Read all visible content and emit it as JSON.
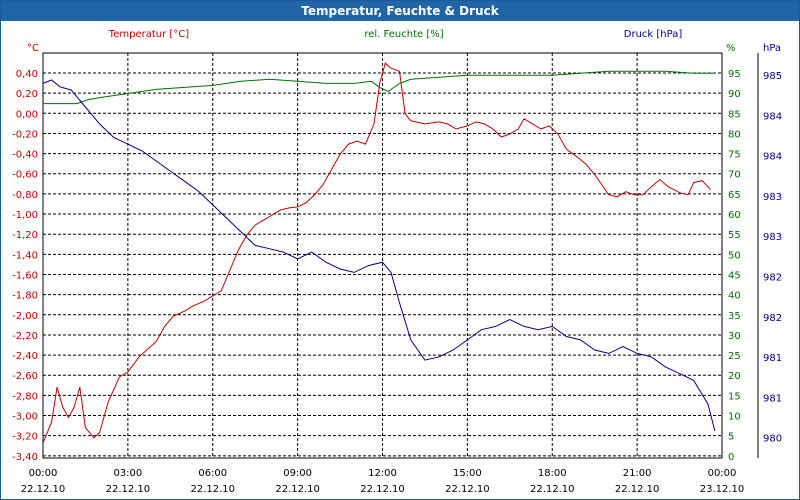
{
  "window": {
    "title": "Temperatur, Feuchte & Druck"
  },
  "chart_data": {
    "type": "line",
    "title": "Temperatur, Feuchte & Druck",
    "colors": {
      "temperature": "#c00000",
      "humidity": "#007000",
      "pressure": "#00008b",
      "grid": "#000000"
    },
    "axes": {
      "temp": {
        "label": "Temperatur [°C]",
        "unit": "°C",
        "range": [
          -3.4,
          0.6
        ],
        "ticks": [
          "0,40",
          "0,20",
          "0,00",
          "-0,20",
          "-0,40",
          "-0,60",
          "-0,80",
          "-1,00",
          "-1,20",
          "-1,40",
          "-1,60",
          "-1,80",
          "-2,00",
          "-2,20",
          "-2,40",
          "-2,60",
          "-2,80",
          "-3,00",
          "-3,20",
          "-3,40"
        ]
      },
      "humidity": {
        "label": "rel. Feuchte [%]",
        "unit": "%",
        "range": [
          0,
          100
        ],
        "ticks": [
          "95",
          "90",
          "85",
          "80",
          "75",
          "70",
          "65",
          "60",
          "55",
          "50",
          "45",
          "40",
          "35",
          "30",
          "25",
          "20",
          "15",
          "10",
          "5",
          "0"
        ]
      },
      "pressure": {
        "label": "Druck [hPa]",
        "unit": "hPa",
        "range": [
          979.8,
          985.8
        ],
        "ticks": [
          "985",
          "984",
          "984",
          "983",
          "983",
          "982",
          "982",
          "981",
          "981",
          "980"
        ]
      }
    },
    "x": {
      "ticks": [
        {
          "time": "00:00",
          "date": "22.12.10"
        },
        {
          "time": "03:00",
          "date": "22.12.10"
        },
        {
          "time": "06:00",
          "date": "22.12.10"
        },
        {
          "time": "09:00",
          "date": "22.12.10"
        },
        {
          "time": "12:00",
          "date": "22.12.10"
        },
        {
          "time": "15:00",
          "date": "22.12.10"
        },
        {
          "time": "18:00",
          "date": "22.12.10"
        },
        {
          "time": "21:00",
          "date": "22.12.10"
        },
        {
          "time": "00:00",
          "date": "23.12.10"
        }
      ],
      "range_hours": [
        0,
        24
      ]
    },
    "series": [
      {
        "name": "Temperatur",
        "axis": "temp",
        "points": [
          [
            0,
            -3.25
          ],
          [
            0.3,
            -3.05
          ],
          [
            0.5,
            -2.7
          ],
          [
            0.7,
            -2.9
          ],
          [
            0.9,
            -3.0
          ],
          [
            1.1,
            -2.9
          ],
          [
            1.3,
            -2.7
          ],
          [
            1.5,
            -3.1
          ],
          [
            1.8,
            -3.2
          ],
          [
            2.0,
            -3.15
          ],
          [
            2.3,
            -2.85
          ],
          [
            2.7,
            -2.6
          ],
          [
            3.0,
            -2.55
          ],
          [
            3.4,
            -2.4
          ],
          [
            3.8,
            -2.3
          ],
          [
            4.0,
            -2.25
          ],
          [
            4.3,
            -2.1
          ],
          [
            4.6,
            -2.0
          ],
          [
            5.0,
            -1.95
          ],
          [
            5.3,
            -1.9
          ],
          [
            5.7,
            -1.85
          ],
          [
            6.0,
            -1.8
          ],
          [
            6.3,
            -1.75
          ],
          [
            6.6,
            -1.55
          ],
          [
            6.9,
            -1.35
          ],
          [
            7.2,
            -1.2
          ],
          [
            7.5,
            -1.1
          ],
          [
            7.8,
            -1.05
          ],
          [
            8.1,
            -1.0
          ],
          [
            8.4,
            -0.95
          ],
          [
            8.7,
            -0.93
          ],
          [
            9.0,
            -0.92
          ],
          [
            9.3,
            -0.88
          ],
          [
            9.6,
            -0.8
          ],
          [
            9.9,
            -0.7
          ],
          [
            10.2,
            -0.55
          ],
          [
            10.5,
            -0.4
          ],
          [
            10.8,
            -0.3
          ],
          [
            11.1,
            -0.27
          ],
          [
            11.4,
            -0.3
          ],
          [
            11.7,
            -0.1
          ],
          [
            11.9,
            0.3
          ],
          [
            12.1,
            0.5
          ],
          [
            12.3,
            0.45
          ],
          [
            12.6,
            0.42
          ],
          [
            12.8,
            0.0
          ],
          [
            13.0,
            -0.07
          ],
          [
            13.5,
            -0.1
          ],
          [
            14.0,
            -0.08
          ],
          [
            14.3,
            -0.1
          ],
          [
            14.6,
            -0.15
          ],
          [
            15.0,
            -0.12
          ],
          [
            15.3,
            -0.08
          ],
          [
            15.6,
            -0.1
          ],
          [
            15.9,
            -0.15
          ],
          [
            16.2,
            -0.23
          ],
          [
            16.5,
            -0.2
          ],
          [
            16.8,
            -0.15
          ],
          [
            17.0,
            -0.05
          ],
          [
            17.3,
            -0.1
          ],
          [
            17.6,
            -0.15
          ],
          [
            17.9,
            -0.12
          ],
          [
            18.2,
            -0.2
          ],
          [
            18.5,
            -0.35
          ],
          [
            18.9,
            -0.43
          ],
          [
            19.2,
            -0.5
          ],
          [
            19.5,
            -0.6
          ],
          [
            19.8,
            -0.72
          ],
          [
            20.0,
            -0.8
          ],
          [
            20.3,
            -0.82
          ],
          [
            20.6,
            -0.77
          ],
          [
            20.9,
            -0.8
          ],
          [
            21.2,
            -0.8
          ],
          [
            21.5,
            -0.72
          ],
          [
            21.8,
            -0.65
          ],
          [
            22.1,
            -0.72
          ],
          [
            22.5,
            -0.78
          ],
          [
            22.8,
            -0.8
          ],
          [
            23.0,
            -0.68
          ],
          [
            23.3,
            -0.66
          ],
          [
            23.6,
            -0.75
          ]
        ]
      },
      {
        "name": "rel. Feuchte",
        "axis": "humidity",
        "points": [
          [
            0,
            87.5
          ],
          [
            1.2,
            87.5
          ],
          [
            1.6,
            88.5
          ],
          [
            2.0,
            89.0
          ],
          [
            3.0,
            90.0
          ],
          [
            4.0,
            91.0
          ],
          [
            5.0,
            91.5
          ],
          [
            6.0,
            92.0
          ],
          [
            7.0,
            93.0
          ],
          [
            8.0,
            93.5
          ],
          [
            9.0,
            93.0
          ],
          [
            10.0,
            92.5
          ],
          [
            11.0,
            92.5
          ],
          [
            11.6,
            93.0
          ],
          [
            11.9,
            91.5
          ],
          [
            12.2,
            90.5
          ],
          [
            12.6,
            92.5
          ],
          [
            13.0,
            93.5
          ],
          [
            14.0,
            94.0
          ],
          [
            15.0,
            94.5
          ],
          [
            16.0,
            94.5
          ],
          [
            17.0,
            94.5
          ],
          [
            18.0,
            94.5
          ],
          [
            19.0,
            95.0
          ],
          [
            20.0,
            95.5
          ],
          [
            21.0,
            95.5
          ],
          [
            22.0,
            95.5
          ],
          [
            23.0,
            95.0
          ],
          [
            23.7,
            95.0
          ]
        ]
      },
      {
        "name": "Druck",
        "axis": "pressure",
        "points": [
          [
            0,
            985.35
          ],
          [
            0.3,
            985.4
          ],
          [
            0.6,
            985.3
          ],
          [
            1.0,
            985.25
          ],
          [
            1.5,
            985.0
          ],
          [
            2.0,
            984.75
          ],
          [
            2.5,
            984.55
          ],
          [
            3.0,
            984.45
          ],
          [
            3.5,
            984.35
          ],
          [
            4.0,
            984.2
          ],
          [
            4.5,
            984.05
          ],
          [
            5.0,
            983.9
          ],
          [
            5.5,
            983.75
          ],
          [
            6.0,
            983.55
          ],
          [
            6.5,
            983.35
          ],
          [
            7.0,
            983.15
          ],
          [
            7.5,
            982.95
          ],
          [
            8.0,
            982.9
          ],
          [
            8.5,
            982.85
          ],
          [
            9.0,
            982.75
          ],
          [
            9.5,
            982.85
          ],
          [
            10.0,
            982.7
          ],
          [
            10.5,
            982.6
          ],
          [
            11.0,
            982.55
          ],
          [
            11.5,
            982.65
          ],
          [
            12.0,
            982.7
          ],
          [
            12.3,
            982.55
          ],
          [
            12.6,
            982.1
          ],
          [
            13.0,
            981.55
          ],
          [
            13.5,
            981.25
          ],
          [
            14.0,
            981.3
          ],
          [
            14.5,
            981.4
          ],
          [
            15.0,
            981.55
          ],
          [
            15.5,
            981.7
          ],
          [
            16.0,
            981.75
          ],
          [
            16.5,
            981.85
          ],
          [
            17.0,
            981.75
          ],
          [
            17.5,
            981.7
          ],
          [
            18.0,
            981.75
          ],
          [
            18.5,
            981.6
          ],
          [
            19.0,
            981.55
          ],
          [
            19.5,
            981.4
          ],
          [
            20.0,
            981.35
          ],
          [
            20.5,
            981.45
          ],
          [
            21.0,
            981.35
          ],
          [
            21.5,
            981.3
          ],
          [
            22.0,
            981.15
          ],
          [
            22.5,
            981.05
          ],
          [
            23.0,
            980.95
          ],
          [
            23.5,
            980.6
          ],
          [
            23.75,
            980.2
          ]
        ]
      }
    ]
  }
}
